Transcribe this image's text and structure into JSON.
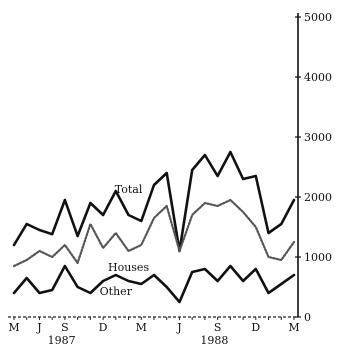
{
  "chart_data": {
    "type": "line",
    "title": "",
    "xlabel": "",
    "ylabel": "",
    "ylim": [
      0,
      5000
    ],
    "y_axis_side": "right",
    "y_ticks": [
      0,
      1000,
      2000,
      3000,
      4000,
      5000
    ],
    "grid": false,
    "x_months": [
      "May 1987",
      "Jun 1987",
      "Jul 1987",
      "Aug 1987",
      "Sep 1987",
      "Oct 1987",
      "Nov 1987",
      "Dec 1987",
      "Jan 1988",
      "Feb 1988",
      "Mar 1988",
      "Apr 1988",
      "May 1988",
      "Jun 1988",
      "Jul 1988",
      "Aug 1988",
      "Sep 1988",
      "Oct 1988",
      "Nov 1988",
      "Dec 1988",
      "Jan 1989",
      "Feb 1989",
      "Mar 1989"
    ],
    "x_tick_labels": [
      {
        "label": "M",
        "at": "May 1987"
      },
      {
        "label": "J",
        "at": "Jul 1987"
      },
      {
        "label": "S",
        "at": "Sep 1987"
      },
      {
        "label": "D",
        "at": "Dec 1987"
      },
      {
        "label": "M",
        "at": "Mar 1988"
      },
      {
        "label": "J",
        "at": "Jun 1988"
      },
      {
        "label": "S",
        "at": "Sep 1988"
      },
      {
        "label": "D",
        "at": "Dec 1988"
      },
      {
        "label": "M",
        "at": "Mar 1989"
      }
    ],
    "year_labels": [
      {
        "label": "1987",
        "at": "Oct 1987"
      },
      {
        "label": "1988",
        "at": "Oct 1988"
      }
    ],
    "series": [
      {
        "name": "Total",
        "color": "#111111",
        "style": "solid",
        "values": [
          1200,
          1550,
          1450,
          1380,
          1950,
          1350,
          1900,
          1700,
          2100,
          1700,
          1600,
          2200,
          2400,
          1100,
          2450,
          2700,
          2350,
          2750,
          2300,
          2350,
          1400,
          1550,
          1950
        ]
      },
      {
        "name": "Houses",
        "color": "#555555",
        "style": "dotted",
        "values": [
          850,
          950,
          1100,
          1000,
          1200,
          900,
          1550,
          1150,
          1400,
          1100,
          1200,
          1650,
          1850,
          1100,
          1700,
          1900,
          1850,
          1950,
          1750,
          1500,
          1000,
          950,
          1250
        ]
      },
      {
        "name": "Other",
        "color": "#111111",
        "style": "solid",
        "values": [
          400,
          650,
          400,
          450,
          850,
          500,
          400,
          600,
          700,
          600,
          550,
          700,
          500,
          250,
          750,
          800,
          600,
          850,
          600,
          800,
          400,
          550,
          700
        ]
      }
    ]
  }
}
